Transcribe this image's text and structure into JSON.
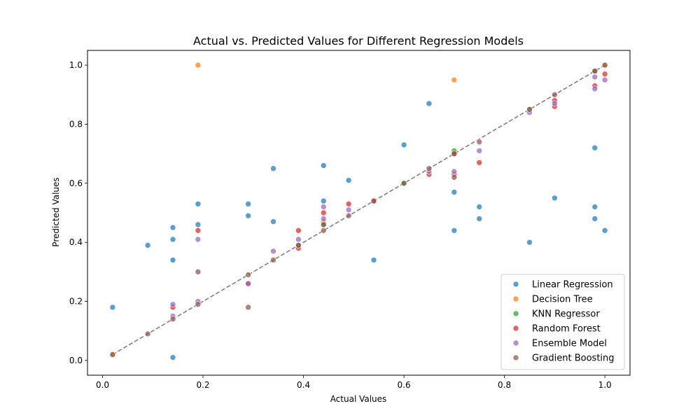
{
  "chart_data": {
    "type": "scatter",
    "title": "Actual vs. Predicted Values for Different Regression Models",
    "xlabel": "Actual Values",
    "ylabel": "Predicted Values",
    "xlim": [
      -0.03,
      1.05
    ],
    "ylim": [
      -0.05,
      1.05
    ],
    "xticks": [
      "0.0",
      "0.2",
      "0.4",
      "0.6",
      "0.8",
      "1.0"
    ],
    "yticks": [
      "0.0",
      "0.2",
      "0.4",
      "0.6",
      "0.8",
      "1.0"
    ],
    "grid": false,
    "legend_position": "lower-right",
    "reference_line": {
      "from": [
        0.02,
        0.02
      ],
      "to": [
        1.0,
        1.0
      ],
      "style": "dashed",
      "color": "#808080"
    },
    "series": [
      {
        "name": "Linear Regression",
        "color": "#1f77b4",
        "points": [
          [
            0.02,
            0.18
          ],
          [
            0.09,
            0.39
          ],
          [
            0.14,
            0.45
          ],
          [
            0.14,
            0.41
          ],
          [
            0.14,
            0.34
          ],
          [
            0.14,
            0.01
          ],
          [
            0.19,
            0.53
          ],
          [
            0.19,
            0.46
          ],
          [
            0.29,
            0.53
          ],
          [
            0.29,
            0.49
          ],
          [
            0.34,
            0.65
          ],
          [
            0.34,
            0.47
          ],
          [
            0.44,
            0.66
          ],
          [
            0.44,
            0.54
          ],
          [
            0.49,
            0.61
          ],
          [
            0.54,
            0.34
          ],
          [
            0.6,
            0.73
          ],
          [
            0.65,
            0.87
          ],
          [
            0.7,
            0.57
          ],
          [
            0.7,
            0.44
          ],
          [
            0.75,
            0.52
          ],
          [
            0.75,
            0.48
          ],
          [
            0.85,
            0.4
          ],
          [
            0.9,
            0.55
          ],
          [
            0.98,
            0.72
          ],
          [
            0.98,
            0.52
          ],
          [
            0.98,
            0.48
          ],
          [
            1.0,
            0.44
          ]
        ]
      },
      {
        "name": "Decision Tree",
        "color": "#ff7f0e",
        "points": [
          [
            0.02,
            0.02
          ],
          [
            0.19,
            1.0
          ],
          [
            0.7,
            0.95
          ],
          [
            0.44,
            0.47
          ],
          [
            0.98,
            0.98
          ],
          [
            1.0,
            1.0
          ]
        ]
      },
      {
        "name": "KNN Regressor",
        "color": "#2ca02c",
        "points": [
          [
            0.7,
            0.71
          ],
          [
            0.39,
            0.39
          ],
          [
            0.44,
            0.46
          ],
          [
            0.6,
            0.6
          ],
          [
            0.85,
            0.85
          ],
          [
            0.98,
            0.98
          ]
        ]
      },
      {
        "name": "Random Forest",
        "color": "#d62728",
        "points": [
          [
            0.14,
            0.18
          ],
          [
            0.19,
            0.44
          ],
          [
            0.29,
            0.26
          ],
          [
            0.39,
            0.44
          ],
          [
            0.39,
            0.38
          ],
          [
            0.44,
            0.5
          ],
          [
            0.49,
            0.53
          ],
          [
            0.54,
            0.54
          ],
          [
            0.65,
            0.63
          ],
          [
            0.7,
            0.7
          ],
          [
            0.7,
            0.63
          ],
          [
            0.75,
            0.67
          ],
          [
            0.9,
            0.88
          ],
          [
            0.9,
            0.86
          ],
          [
            0.98,
            0.93
          ],
          [
            1.0,
            0.97
          ]
        ]
      },
      {
        "name": "Ensemble Model",
        "color": "#9467bd",
        "points": [
          [
            0.14,
            0.19
          ],
          [
            0.14,
            0.15
          ],
          [
            0.19,
            0.41
          ],
          [
            0.19,
            0.2
          ],
          [
            0.29,
            0.26
          ],
          [
            0.34,
            0.37
          ],
          [
            0.39,
            0.41
          ],
          [
            0.44,
            0.52
          ],
          [
            0.44,
            0.48
          ],
          [
            0.49,
            0.51
          ],
          [
            0.65,
            0.64
          ],
          [
            0.7,
            0.64
          ],
          [
            0.75,
            0.71
          ],
          [
            0.85,
            0.84
          ],
          [
            0.9,
            0.87
          ],
          [
            0.98,
            0.92
          ],
          [
            0.98,
            0.96
          ],
          [
            1.0,
            0.95
          ]
        ]
      },
      {
        "name": "Gradient Boosting",
        "color": "#8c564b",
        "points": [
          [
            0.02,
            0.02
          ],
          [
            0.09,
            0.09
          ],
          [
            0.14,
            0.14
          ],
          [
            0.19,
            0.3
          ],
          [
            0.19,
            0.19
          ],
          [
            0.29,
            0.29
          ],
          [
            0.29,
            0.18
          ],
          [
            0.34,
            0.34
          ],
          [
            0.39,
            0.39
          ],
          [
            0.44,
            0.44
          ],
          [
            0.44,
            0.46
          ],
          [
            0.49,
            0.49
          ],
          [
            0.54,
            0.54
          ],
          [
            0.6,
            0.6
          ],
          [
            0.65,
            0.65
          ],
          [
            0.7,
            0.62
          ],
          [
            0.7,
            0.7
          ],
          [
            0.75,
            0.74
          ],
          [
            0.85,
            0.85
          ],
          [
            0.9,
            0.9
          ],
          [
            0.98,
            0.98
          ],
          [
            1.0,
            1.0
          ]
        ]
      }
    ]
  }
}
